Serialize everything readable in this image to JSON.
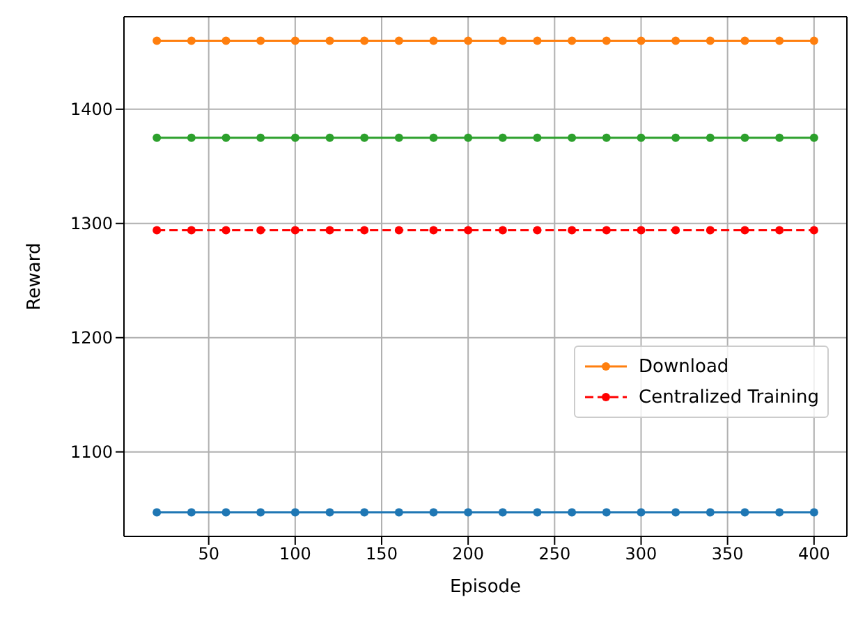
{
  "chart_data": {
    "type": "line",
    "xlabel": "Episode",
    "ylabel": "Reward",
    "x": [
      20,
      40,
      60,
      80,
      100,
      120,
      140,
      160,
      180,
      200,
      220,
      240,
      260,
      280,
      300,
      320,
      340,
      360,
      380,
      400
    ],
    "series": [
      {
        "color": "#1f77b4",
        "values": [
          1047,
          1047,
          1047,
          1047,
          1047,
          1047,
          1047,
          1047,
          1047,
          1047,
          1047,
          1047,
          1047,
          1047,
          1047,
          1047,
          1047,
          1047,
          1047,
          1047
        ]
      },
      {
        "name": "Download",
        "color": "#ff7f0e",
        "values": [
          1460,
          1460,
          1460,
          1460,
          1460,
          1460,
          1460,
          1460,
          1460,
          1460,
          1460,
          1460,
          1460,
          1460,
          1460,
          1460,
          1460,
          1460,
          1460,
          1460
        ]
      },
      {
        "color": "#2ca02c",
        "values": [
          1375,
          1375,
          1375,
          1375,
          1375,
          1375,
          1375,
          1375,
          1375,
          1375,
          1375,
          1375,
          1375,
          1375,
          1375,
          1375,
          1375,
          1375,
          1375,
          1375
        ]
      },
      {
        "name": "Centralized Training",
        "color": "#ff0000",
        "line_style": "dashed",
        "values": [
          1294,
          1294,
          1294,
          1294,
          1294,
          1294,
          1294,
          1294,
          1294,
          1294,
          1294,
          1294,
          1294,
          1294,
          1294,
          1294,
          1294,
          1294,
          1294,
          1294
        ]
      }
    ],
    "xlim": [
      1,
      419
    ],
    "xticks": [
      50,
      100,
      150,
      200,
      250,
      300,
      350,
      400
    ],
    "ylim": [
      1026,
      1481
    ],
    "yticks": [
      1100,
      1200,
      1300,
      1400
    ],
    "grid": true,
    "legend": "right",
    "marker": "circle",
    "line_style": "solid"
  }
}
